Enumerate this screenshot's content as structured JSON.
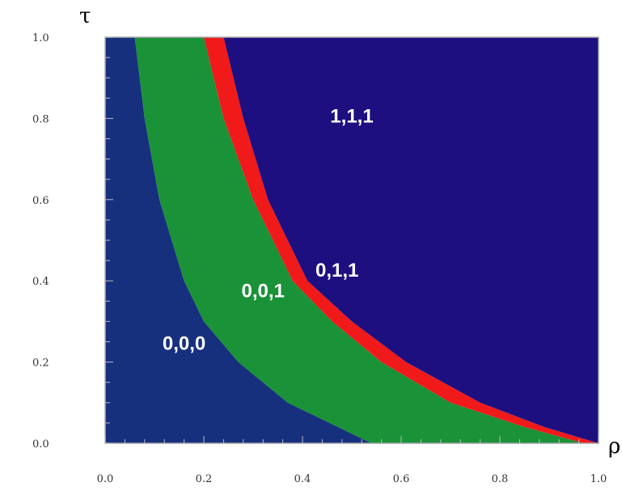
{
  "chart_data": {
    "type": "area",
    "xlabel": "ρ",
    "ylabel": "τ",
    "xlim": [
      0.0,
      1.0
    ],
    "ylim": [
      0.0,
      1.0
    ],
    "x_ticks": [
      "0.0",
      "0.2",
      "0.4",
      "0.6",
      "0.8",
      "1.0"
    ],
    "y_ticks": [
      "0.0",
      "0.2",
      "0.4",
      "0.6",
      "0.8",
      "1.0"
    ],
    "grid": false,
    "boundaries": [
      {
        "name": "lower",
        "points": [
          [
            0.06,
            1.0
          ],
          [
            0.08,
            0.8
          ],
          [
            0.11,
            0.6
          ],
          [
            0.16,
            0.4
          ],
          [
            0.2,
            0.3
          ],
          [
            0.27,
            0.2
          ],
          [
            0.37,
            0.1
          ],
          [
            0.54,
            0.0
          ]
        ]
      },
      {
        "name": "middle",
        "points": [
          [
            0.2,
            1.0
          ],
          [
            0.24,
            0.8
          ],
          [
            0.3,
            0.6
          ],
          [
            0.38,
            0.4
          ],
          [
            0.46,
            0.3
          ],
          [
            0.56,
            0.2
          ],
          [
            0.7,
            0.1
          ],
          [
            0.85,
            0.04
          ],
          [
            0.97,
            0.0
          ]
        ]
      },
      {
        "name": "upper",
        "points": [
          [
            0.24,
            1.0
          ],
          [
            0.28,
            0.8
          ],
          [
            0.33,
            0.6
          ],
          [
            0.41,
            0.4
          ],
          [
            0.5,
            0.3
          ],
          [
            0.61,
            0.2
          ],
          [
            0.76,
            0.1
          ],
          [
            0.89,
            0.04
          ],
          [
            1.0,
            0.0
          ]
        ]
      }
    ],
    "regions": [
      {
        "label": "0,0,0",
        "color": "#17307e",
        "x": 0.16,
        "y": 0.23
      },
      {
        "label": "0,0,1",
        "color": "#1a9238",
        "x": 0.32,
        "y": 0.36
      },
      {
        "label": "0,1,1",
        "color": "#f01a1a",
        "x": 0.47,
        "y": 0.41
      },
      {
        "label": "1,1,1",
        "color": "#1d0f80",
        "x": 0.5,
        "y": 0.79
      }
    ]
  }
}
